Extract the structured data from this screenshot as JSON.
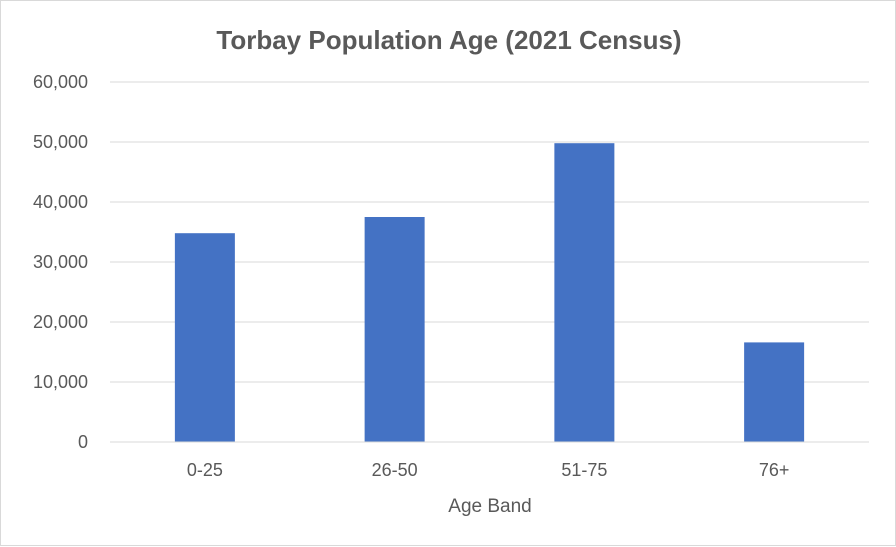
{
  "chart_data": {
    "type": "bar",
    "title": "Torbay Population Age (2021 Census)",
    "xlabel": "Age Band",
    "ylabel": "",
    "categories": [
      "0-25",
      "26-50",
      "51-75",
      "76+"
    ],
    "values": [
      34800,
      37500,
      49800,
      16600
    ],
    "ylim": [
      0,
      60000
    ],
    "yticks": [
      0,
      10000,
      20000,
      30000,
      40000,
      50000,
      60000
    ],
    "ytick_labels": [
      "0",
      "10,000",
      "20,000",
      "30,000",
      "40,000",
      "50,000",
      "60,000"
    ],
    "grid": true,
    "legend": "none",
    "bar_color": "#4472c4",
    "grid_color": "#d9d9d9"
  }
}
